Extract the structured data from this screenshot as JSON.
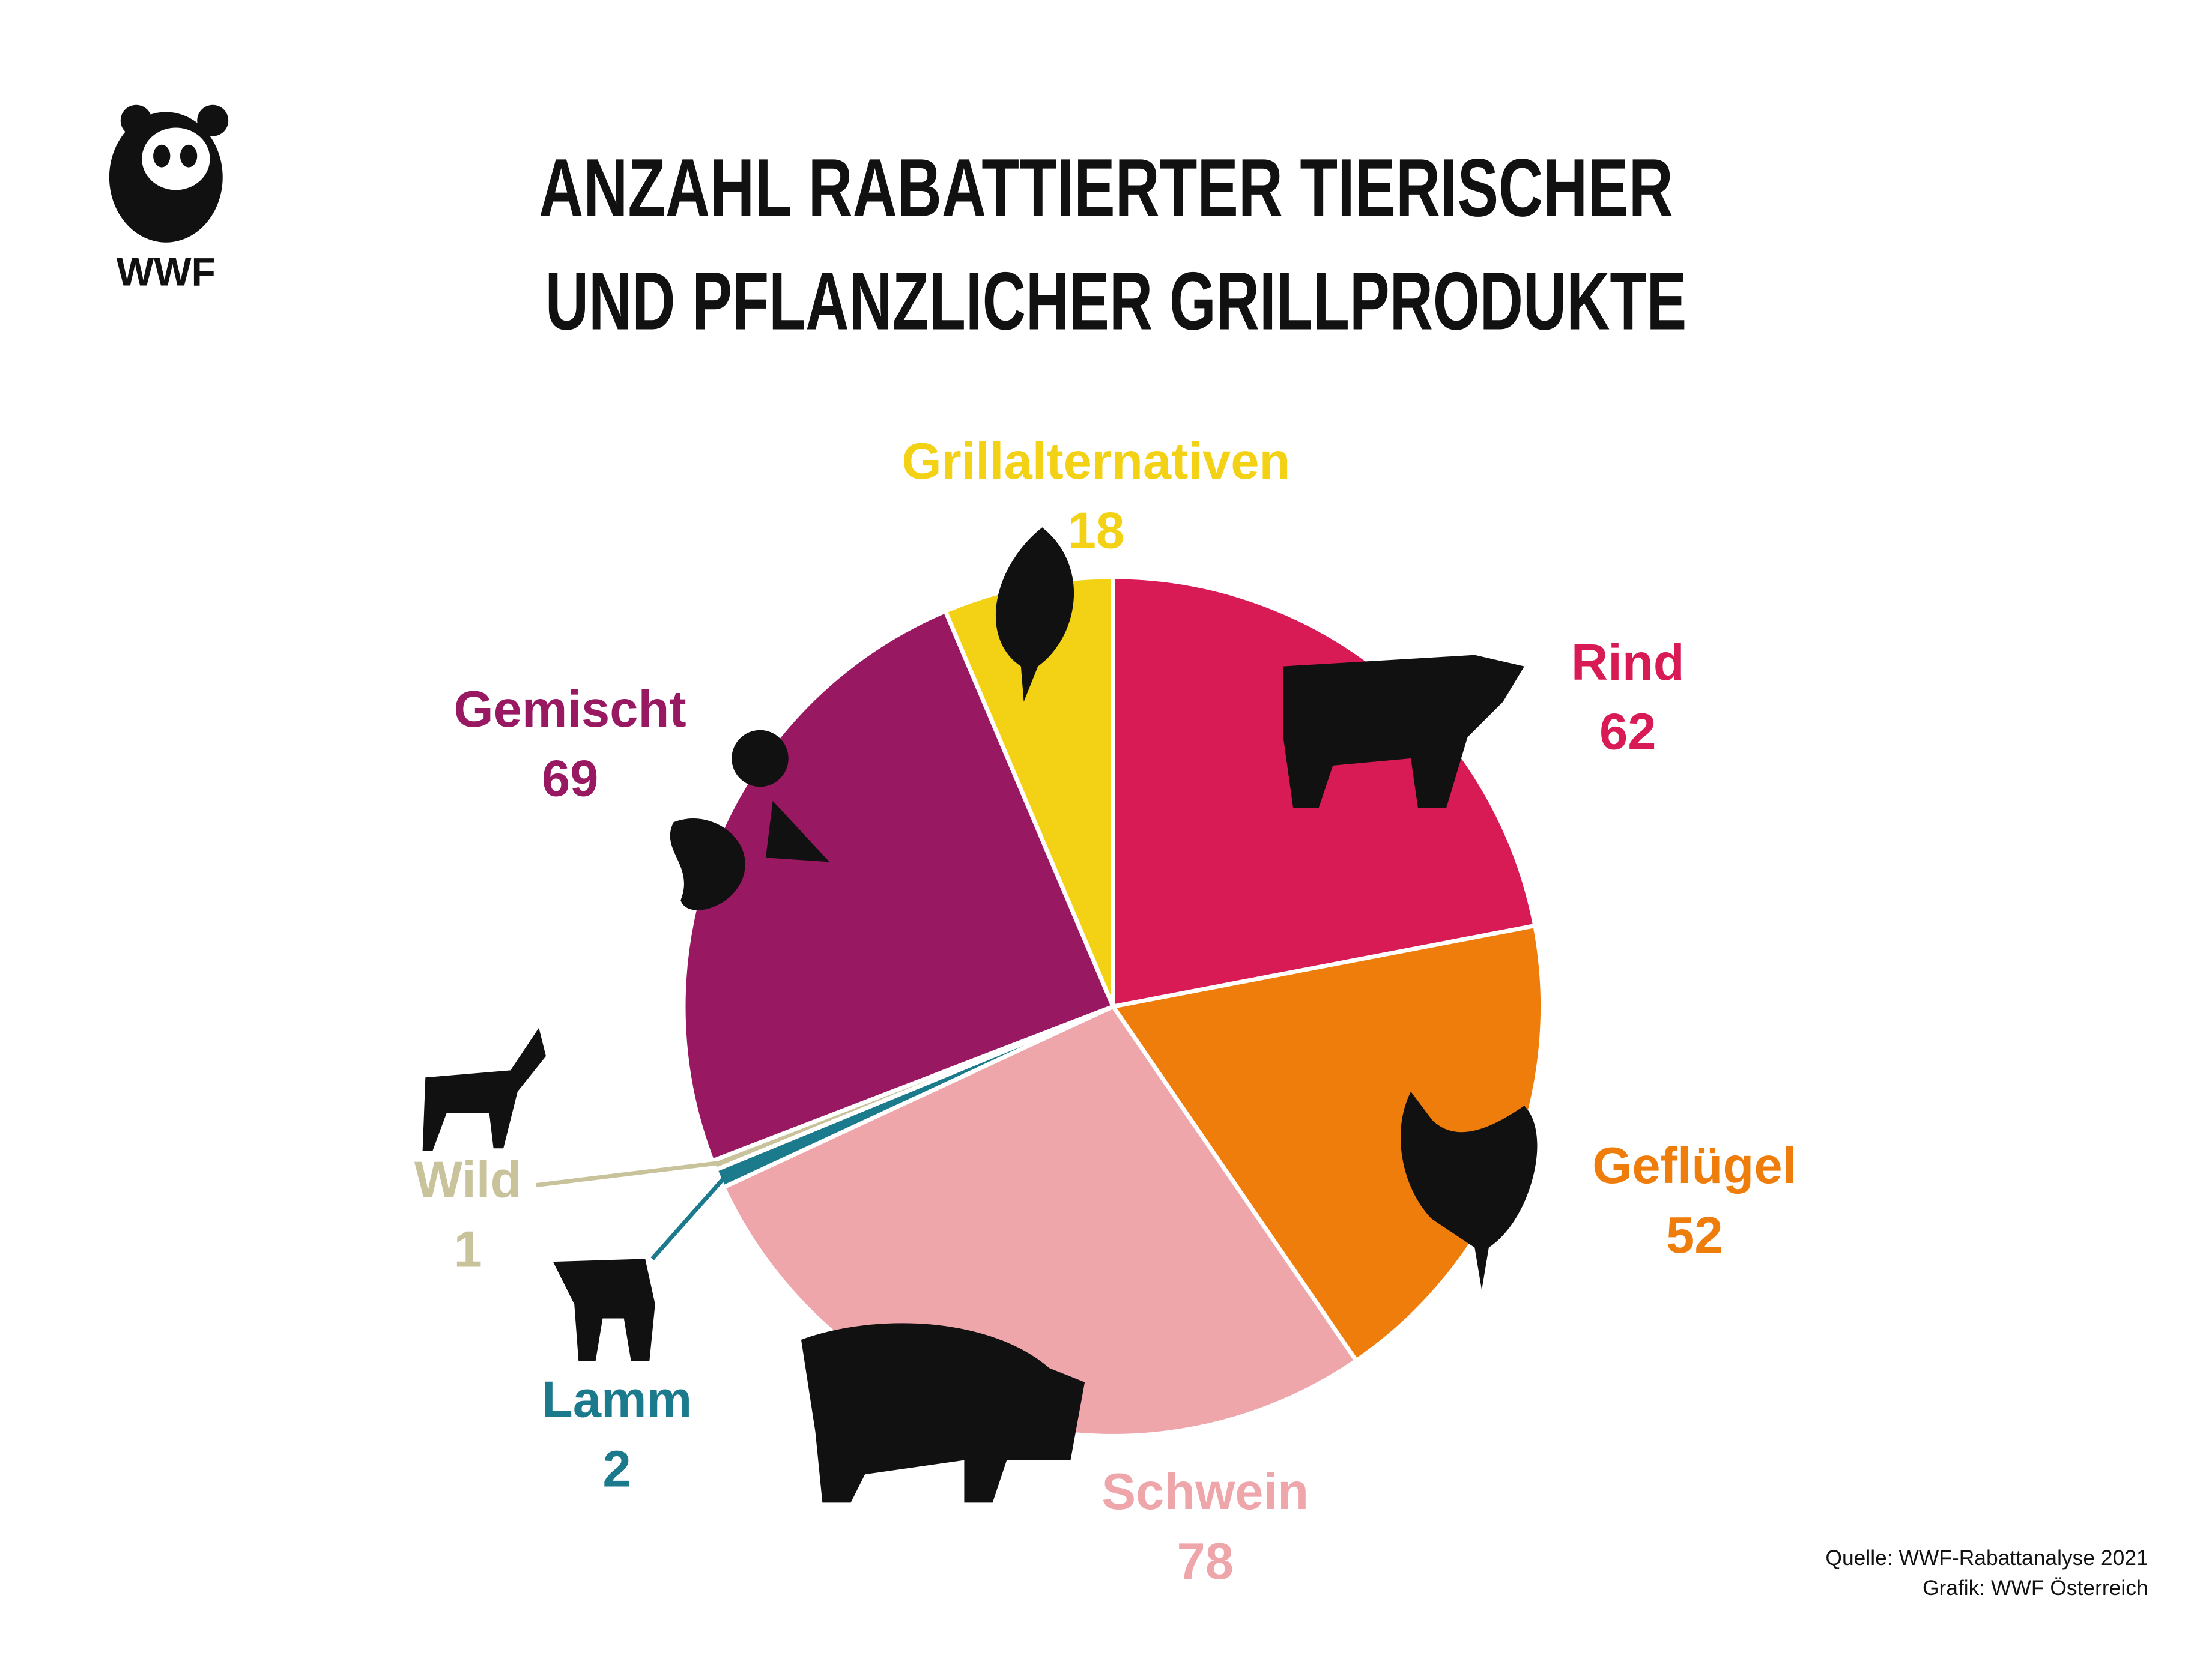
{
  "logo": "WWF",
  "source": [
    "Quelle: WWF-Rabattanalyse 2021",
    "Grafik: WWF Österreich"
  ],
  "chart_data": {
    "type": "pie",
    "title": [
      "ANZAHL RABATTIERTER TIERISCHER",
      "UND PFLANZLICHER GRILLPRODUKTE"
    ],
    "categories": [
      "Rind",
      "Geflügel",
      "Schwein",
      "Lamm",
      "Wild",
      "Gemischt",
      "Grillalternativen"
    ],
    "values": [
      62,
      52,
      78,
      2,
      1,
      69,
      18
    ],
    "colors": [
      "#d81b55",
      "#ef7d0b",
      "#eea6ab",
      "#1b7a8c",
      "#c9c39b",
      "#981862",
      "#f3d216"
    ]
  }
}
